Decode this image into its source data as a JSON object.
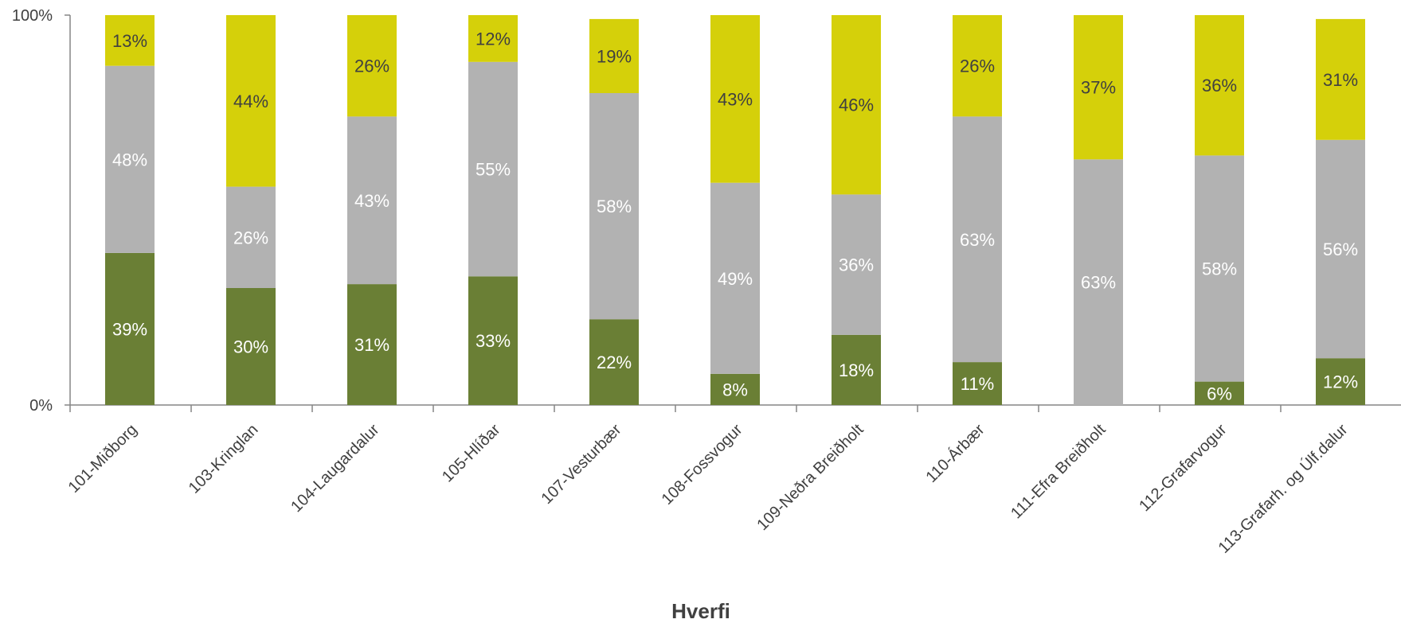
{
  "chart_data": {
    "type": "bar",
    "stacked": true,
    "percent_stacked": true,
    "xlabel": "Hverfi",
    "ylabel": "",
    "ylim": [
      0,
      100
    ],
    "yticks": [
      "0%",
      "100%"
    ],
    "grid": false,
    "categories": [
      "101-Miðborg",
      "103-Kringlan",
      "104-Laugardalur",
      "105-Hlíðar",
      "107-Vesturbær",
      "108-Fossvogur",
      "109-Neðra Breiðholt",
      "110-Árbær",
      "111-Efra Breiðholt",
      "112-Grafarvogur",
      "113-Grafarh. og Úlf.dalur"
    ],
    "series": [
      {
        "color": "#6a7f35",
        "label_color": "#ffffff",
        "values": [
          39,
          30,
          31,
          33,
          22,
          8,
          18,
          11,
          0,
          6,
          12
        ],
        "labels": [
          "39%",
          "30%",
          "31%",
          "33%",
          "22%",
          "8%",
          "18%",
          "11%",
          "",
          "6%",
          "12%"
        ]
      },
      {
        "color": "#b2b2b2",
        "label_color": "#ffffff",
        "values": [
          48,
          26,
          43,
          55,
          58,
          49,
          36,
          63,
          63,
          58,
          56
        ],
        "labels": [
          "48%",
          "26%",
          "43%",
          "55%",
          "58%",
          "49%",
          "36%",
          "63%",
          "63%",
          "58%",
          "56%"
        ]
      },
      {
        "color": "#d5d00a",
        "label_color": "#404040",
        "values": [
          13,
          44,
          26,
          12,
          19,
          43,
          46,
          26,
          37,
          36,
          31
        ],
        "labels": [
          "13%",
          "44%",
          "26%",
          "12%",
          "19%",
          "43%",
          "46%",
          "26%",
          "37%",
          "36%",
          "31%"
        ]
      }
    ]
  }
}
